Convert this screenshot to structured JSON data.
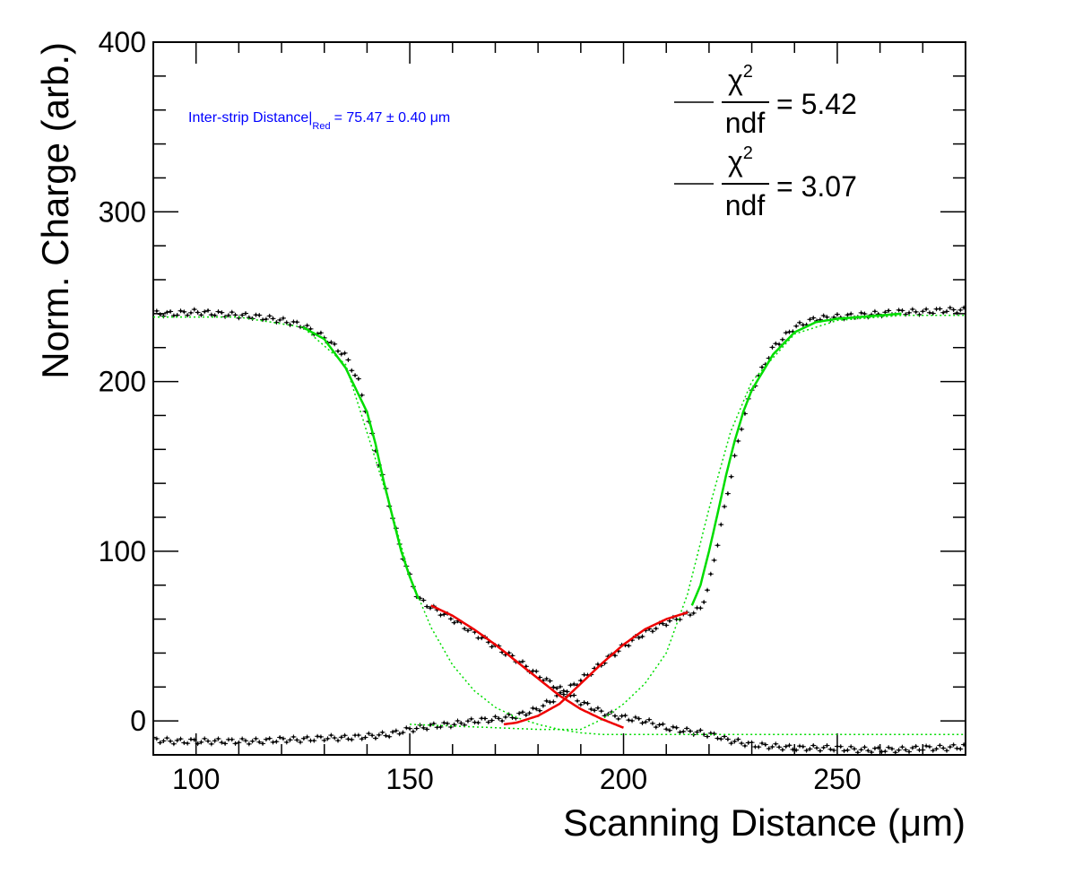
{
  "chart_data": {
    "type": "scatter",
    "xlabel": "Scanning Distance (μm)",
    "ylabel": "Norm. Charge (arb.)",
    "xlim": [
      90,
      280
    ],
    "ylim": [
      -20,
      400
    ],
    "xticks": [
      100,
      150,
      200,
      250
    ],
    "yticks": [
      0,
      100,
      200,
      300,
      400
    ],
    "grid": false,
    "annotation": {
      "text": "Inter-strip Distance|",
      "subscript": "Red",
      "value": "= 75.47 ± 0.40 μm",
      "color": "#0000ff"
    },
    "legend": {
      "position": "top-right",
      "entries": [
        {
          "numerator": "χ",
          "superscript": "2",
          "denominator": "ndf",
          "value": "= 5.42"
        },
        {
          "numerator": "χ",
          "superscript": "2",
          "denominator": "ndf",
          "value": "= 3.07"
        }
      ]
    },
    "series": [
      {
        "kind": "data",
        "color": "#000000",
        "x": [
          90,
          95,
          100,
          105,
          110,
          115,
          120,
          125,
          130,
          135,
          138,
          140,
          142,
          144,
          146,
          148,
          150,
          152,
          155,
          160,
          165,
          170,
          175,
          180,
          185,
          190,
          195,
          200,
          205,
          210,
          215,
          218,
          220,
          222,
          224,
          226,
          228,
          230,
          235,
          240,
          245,
          250,
          255,
          260,
          265,
          270,
          275,
          280
        ],
        "y": [
          240,
          240,
          241,
          240,
          239,
          238,
          236,
          233,
          226,
          215,
          200,
          180,
          160,
          140,
          120,
          100,
          85,
          72,
          67,
          60,
          52,
          44,
          36,
          27,
          19,
          11,
          5,
          2,
          0,
          -4,
          -6,
          -7,
          -8,
          -9,
          -11,
          -12,
          -13,
          -14,
          -15,
          -16,
          -16,
          -16,
          -17,
          -17,
          -17,
          -16,
          -16,
          -15
        ]
      },
      {
        "kind": "data",
        "color": "#000000",
        "x": [
          90,
          95,
          100,
          105,
          110,
          115,
          120,
          125,
          130,
          135,
          140,
          145,
          150,
          155,
          160,
          165,
          170,
          175,
          180,
          185,
          190,
          195,
          200,
          205,
          210,
          215,
          218,
          220,
          222,
          224,
          226,
          228,
          230,
          235,
          240,
          245,
          250,
          255,
          260,
          265,
          270,
          275,
          280
        ],
        "y": [
          -11,
          -12,
          -12,
          -12,
          -12,
          -12,
          -11,
          -11,
          -10,
          -10,
          -9,
          -8,
          -5,
          -3,
          -2,
          0,
          1,
          3,
          7,
          15,
          24,
          34,
          44,
          52,
          58,
          63,
          66,
          80,
          105,
          130,
          155,
          178,
          195,
          220,
          232,
          237,
          238,
          239,
          240,
          241,
          241,
          242,
          242
        ]
      },
      {
        "kind": "fit",
        "style": "solid",
        "color": "#00dd00",
        "x": [
          125,
          130,
          135,
          140,
          142,
          144,
          146,
          148,
          150,
          152
        ],
        "y": [
          232,
          225,
          208,
          182,
          163,
          140,
          120,
          100,
          85,
          72
        ]
      },
      {
        "kind": "fit",
        "style": "solid",
        "color": "#00dd00",
        "x": [
          216,
          218,
          220,
          222,
          224,
          226,
          228,
          230,
          235,
          240,
          245,
          250,
          255,
          260,
          265
        ],
        "y": [
          68,
          80,
          100,
          122,
          145,
          165,
          182,
          195,
          216,
          229,
          235,
          237,
          238,
          239,
          240
        ]
      },
      {
        "kind": "fit",
        "style": "dotted",
        "color": "#00dd00",
        "x": [
          90,
          110,
          125,
          135,
          145,
          150,
          155,
          160,
          165,
          170,
          175,
          180,
          185,
          190,
          195,
          200,
          210,
          220,
          280
        ],
        "y": [
          238,
          238,
          232,
          210,
          130,
          85,
          55,
          33,
          18,
          8,
          2,
          -2,
          -5,
          -7,
          -8,
          -8,
          -8,
          -8,
          -8
        ]
      },
      {
        "kind": "fit",
        "style": "dotted",
        "color": "#00dd00",
        "x": [
          150,
          160,
          170,
          180,
          190,
          195,
          200,
          205,
          210,
          215,
          220,
          225,
          230,
          240,
          250,
          265,
          280
        ],
        "y": [
          -2,
          -3,
          -4,
          -5,
          -5,
          1,
          10,
          22,
          40,
          75,
          125,
          170,
          200,
          228,
          236,
          239,
          239
        ]
      },
      {
        "kind": "fit",
        "style": "solid",
        "color": "#ee0000",
        "x": [
          155,
          160,
          165,
          170,
          175,
          180,
          185,
          190,
          195,
          200
        ],
        "y": [
          68,
          62,
          54,
          45,
          35,
          25,
          15,
          7,
          1,
          -4
        ]
      },
      {
        "kind": "fit",
        "style": "solid",
        "color": "#ee0000",
        "x": [
          172,
          175,
          180,
          185,
          190,
          195,
          200,
          205,
          210,
          215
        ],
        "y": [
          -2,
          -1,
          3,
          10,
          22,
          34,
          45,
          54,
          60,
          64
        ]
      }
    ]
  }
}
